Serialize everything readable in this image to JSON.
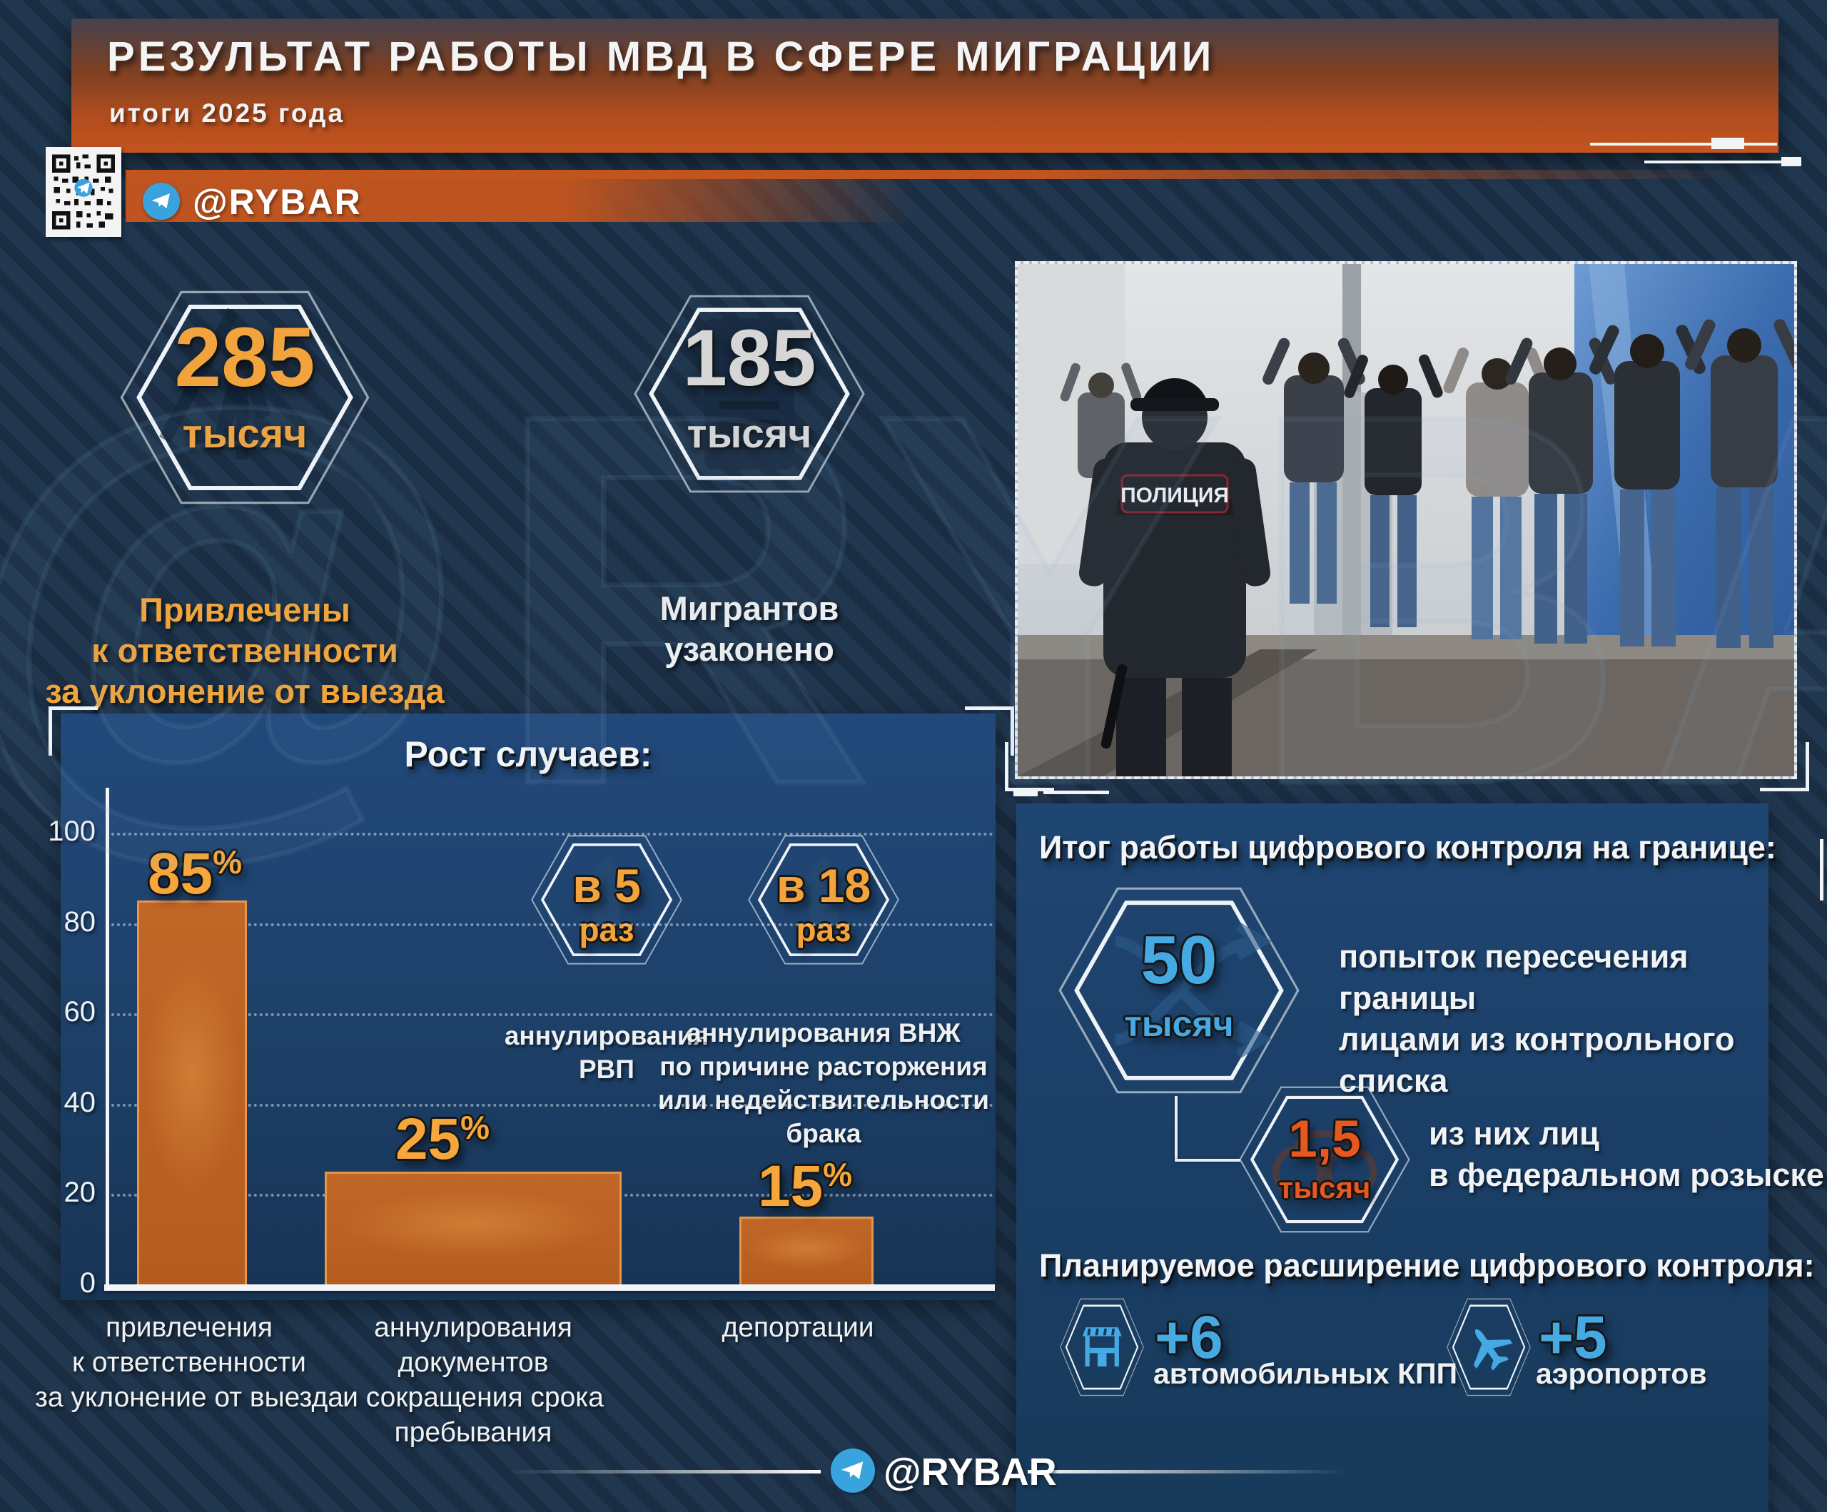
{
  "watermark": {
    "text": "@RYBAR"
  },
  "header": {
    "title": "РЕЗУЛЬТАТ РАБОТЫ МВД В СФЕРЕ МИГРАЦИИ",
    "subtitle": "итоги 2025 года"
  },
  "channel": {
    "handle": "@RYBAR"
  },
  "stats": [
    {
      "value": "285",
      "unit": "тысяч",
      "caption": "Привлечены\nк ответственности\nза уклонение от выезда"
    },
    {
      "value": "185",
      "unit": "тысяч",
      "caption": "Мигрантов\nузаконено"
    }
  ],
  "photo": {
    "police_back_label": "ПОЛИЦИЯ"
  },
  "chart": {
    "title": "Рост случаев:"
  },
  "chart_data": {
    "type": "bar",
    "title": "Рост случаев:",
    "categories": [
      "привлечения\nк ответственности\nза уклонение от выезда",
      "аннулирования\nдокументов\nи сокращения срока\nпребывания",
      "депортации"
    ],
    "values": [
      85,
      25,
      15
    ],
    "unit": "%",
    "xlabel": "",
    "ylabel": "",
    "ylim": [
      0,
      100
    ],
    "yticks": [
      0,
      20,
      40,
      60,
      80,
      100
    ],
    "grid": true,
    "legend_position": "none",
    "bar_color": "#c2661f"
  },
  "growth": [
    {
      "value": "в 5",
      "unit": "раз",
      "caption": "аннулирования\nРВП"
    },
    {
      "value": "в 18",
      "unit": "раз",
      "caption": "аннулирования ВНЖ\nпо причине расторжения\nили недействительности\nбрака"
    }
  ],
  "border_control": {
    "title": "Итог работы цифрового контроля на границе:",
    "items": [
      {
        "value": "50",
        "unit": "тысяч",
        "text": "попыток пересечения границы\nлицами из контрольного списка",
        "accent": "#45aae3"
      },
      {
        "value": "1,5",
        "unit": "тысяч",
        "text": "из них лиц\nв федеральном розыске",
        "accent": "#e6581d"
      }
    ]
  },
  "expansion": {
    "title": "Планируемое расширение цифрового контроля:",
    "items": [
      {
        "value": "+6",
        "label": "автомобильных КПП",
        "icon": "checkpoint-icon"
      },
      {
        "value": "+5",
        "label": "аэропортов",
        "icon": "airplane-icon"
      }
    ]
  },
  "colors": {
    "accent_orange": "#f0a43c",
    "accent_blue": "#45aae3",
    "accent_red": "#e6581d",
    "header_orange": "#c4551f",
    "panel_blue": "#1d4068",
    "bar_fill": "#c2661f"
  }
}
